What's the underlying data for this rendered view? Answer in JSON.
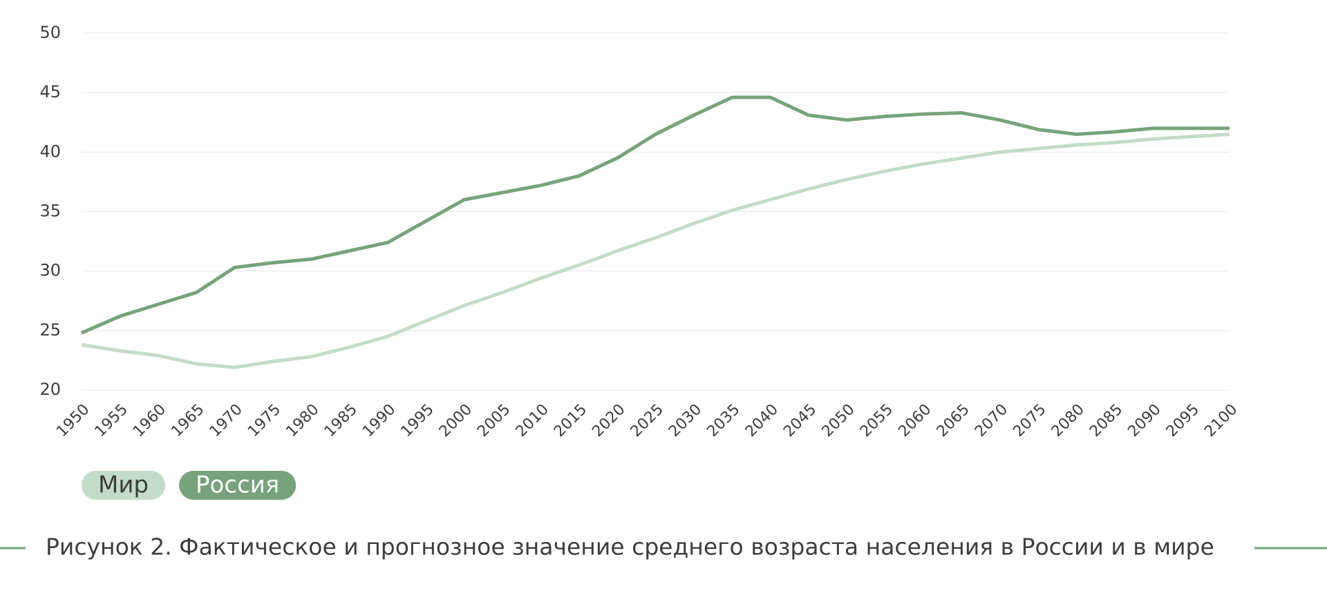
{
  "chart_data": {
    "type": "line",
    "caption": "Рисунок 2. Фактическое и прогнозное значение среднего возраста населения в России и в мире",
    "x": [
      1950,
      1955,
      1960,
      1965,
      1970,
      1975,
      1980,
      1985,
      1990,
      1995,
      2000,
      2005,
      2010,
      2015,
      2020,
      2025,
      2030,
      2035,
      2040,
      2045,
      2050,
      2055,
      2060,
      2065,
      2070,
      2075,
      2080,
      2085,
      2090,
      2095,
      2100
    ],
    "xlim": [
      1950,
      2100
    ],
    "ylim": [
      20,
      50
    ],
    "yticks": [
      20,
      25,
      30,
      35,
      40,
      45,
      50
    ],
    "grid": true,
    "series": [
      {
        "name": "Мир",
        "color": "#c3dcc7",
        "values": [
          23.8,
          23.3,
          22.9,
          22.2,
          21.9,
          22.4,
          22.8,
          23.6,
          24.5,
          25.8,
          27.1,
          28.2,
          29.4,
          30.5,
          31.7,
          32.8,
          34.0,
          35.1,
          36.0,
          36.9,
          37.7,
          38.4,
          39.0,
          39.5,
          40.0,
          40.3,
          40.6,
          40.8,
          41.1,
          41.3,
          41.5
        ]
      },
      {
        "name": "Россия",
        "color": "#76a37b",
        "values": [
          24.8,
          26.2,
          27.2,
          28.2,
          30.3,
          30.7,
          31.0,
          31.7,
          32.4,
          34.2,
          36.0,
          36.6,
          37.2,
          38.0,
          39.5,
          41.5,
          43.1,
          44.6,
          44.6,
          43.1,
          42.7,
          43.0,
          43.2,
          43.3,
          42.7,
          41.9,
          41.5,
          41.7,
          42.0,
          42.0,
          42.0
        ]
      }
    ],
    "legend": "bottom-left"
  }
}
